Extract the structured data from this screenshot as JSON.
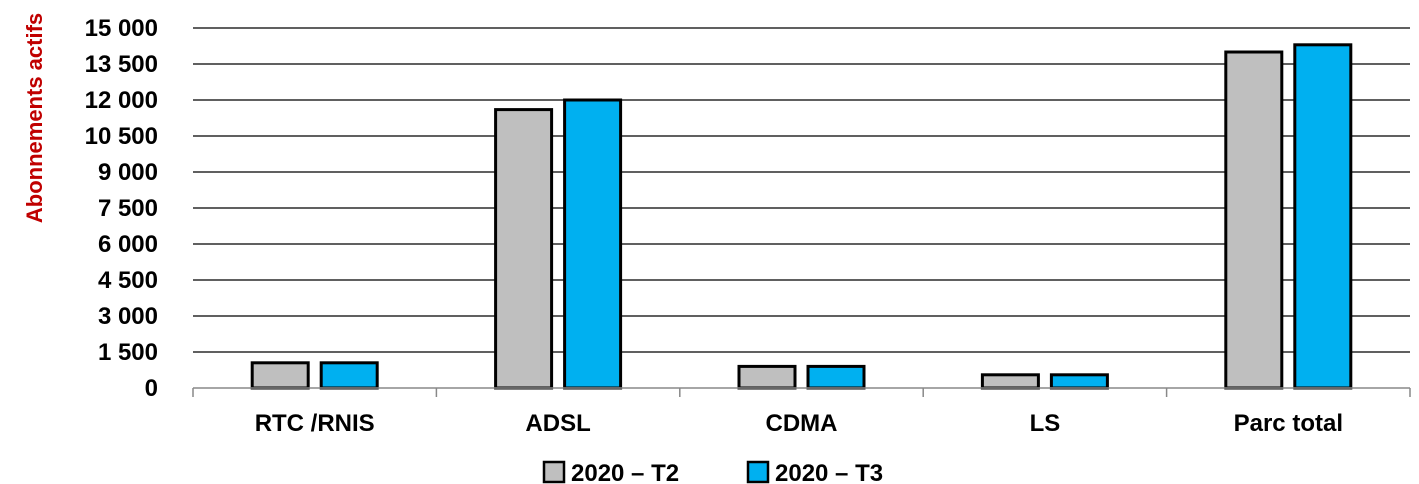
{
  "chart_data": {
    "type": "bar",
    "title": "",
    "xlabel": "",
    "ylabel": "Abonnements actifs",
    "y_tick_labels": [
      "0",
      "1 500",
      "3 000",
      "4 500",
      "6 000",
      "7 500",
      "9 000",
      "10 500",
      "12 000",
      "13 500",
      "15 000"
    ],
    "ylim": [
      0,
      15000
    ],
    "grid": true,
    "legend_position": "bottom",
    "categories": [
      "RTC /RNIS",
      "ADSL",
      "CDMA",
      "LS",
      "Parc total"
    ],
    "series": [
      {
        "name": "2020 – T2",
        "color": "#bfbfbf",
        "values": [
          1050,
          11600,
          900,
          550,
          14000
        ]
      },
      {
        "name": "2020 – T3",
        "color": "#00b0f0",
        "values": [
          1050,
          12000,
          900,
          550,
          14300
        ]
      }
    ]
  }
}
